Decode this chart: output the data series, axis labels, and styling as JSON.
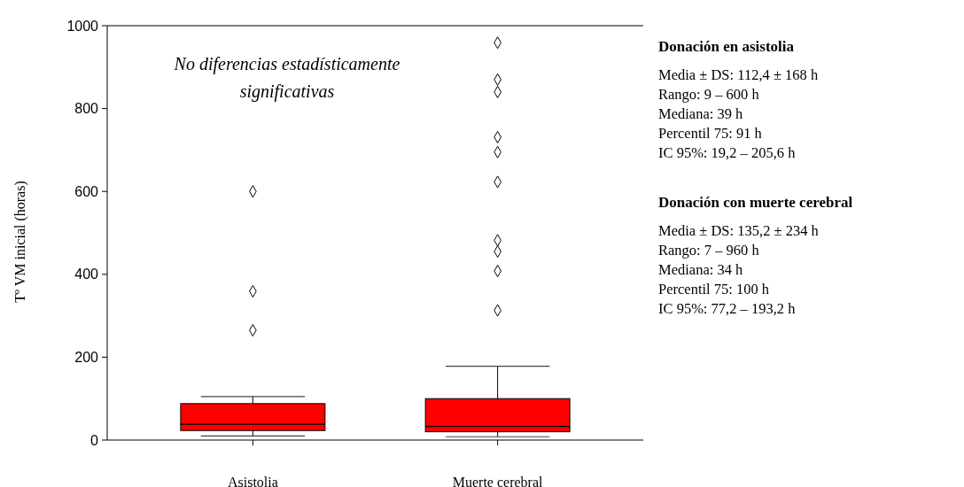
{
  "chart_data": {
    "type": "box",
    "ylabel": "Tº VM inicial (horas)",
    "categories": [
      "Asistolia",
      "Muerte cerebral"
    ],
    "color": "#ff0000",
    "marker": "diamond",
    "ylim": [
      0,
      1000
    ],
    "yticks": [
      0,
      200,
      400,
      600,
      800,
      1000
    ],
    "boxes": [
      {
        "low": 10,
        "q1": 23,
        "median": 38,
        "q3": 88,
        "high": 105,
        "outliers": [
          600,
          359,
          265
        ]
      },
      {
        "low": 8,
        "q1": 20,
        "median": 33,
        "q3": 100,
        "high": 178,
        "outliers": [
          959,
          870,
          840,
          731,
          695,
          623,
          482,
          455,
          408,
          313
        ]
      }
    ],
    "annotations": [
      "No diferencias estadísticamente significativas",
      "Donación en asistolia",
      "Media ± DS: 112,4 ± 168 h",
      "Rango: 9 – 600 h",
      "Mediana: 39 h",
      "Percentil 75: 91 h",
      "IC 95%: 19,2 – 205,6 h",
      "Donación con muerte cerebral",
      "Media ± DS: 135,2 ± 234 h",
      "Rango: 7 – 960 h",
      "Mediana: 34 h",
      "Percentil 75: 100 h",
      "IC 95%: 77,2 – 193,2 h"
    ]
  }
}
